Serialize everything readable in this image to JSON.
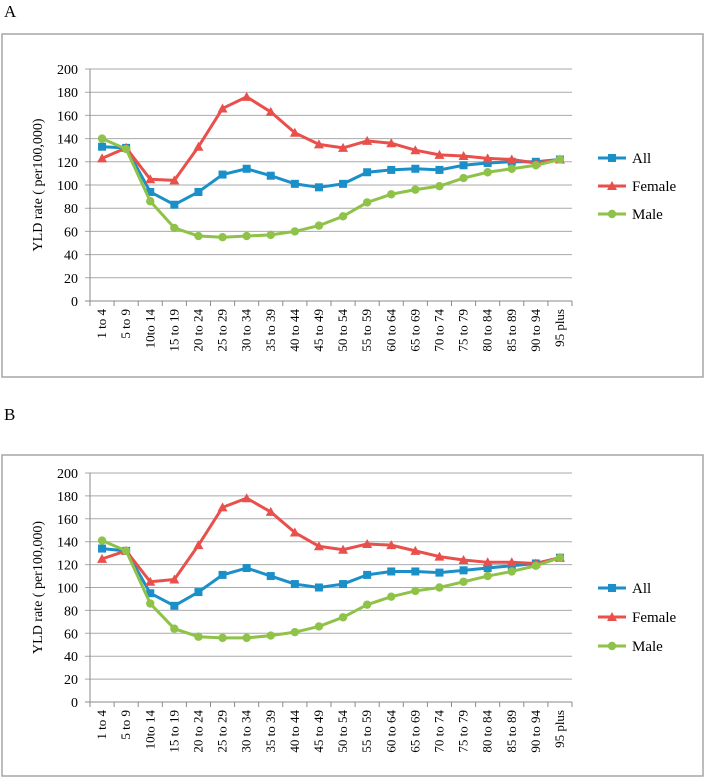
{
  "chart_data": [
    {
      "panel_label": "A",
      "type": "line",
      "title": "",
      "xlabel": "",
      "ylabel": "YLD rate ( per100,000)",
      "ylim": [
        0,
        200
      ],
      "yticks": [
        0,
        20,
        40,
        60,
        80,
        100,
        120,
        140,
        160,
        180,
        200
      ],
      "grid": true,
      "legend": "right",
      "categories": [
        "1 to 4",
        "5 to 9",
        "10to 14",
        "15 to 19",
        "20 to 24",
        "25 to 29",
        "30 to 34",
        "35 to 39",
        "40 to 44",
        "45 to 49",
        "50 to 54",
        "55 to 59",
        "60 to 64",
        "65 to 69",
        "70 to 74",
        "75 to 79",
        "80 to 84",
        "85 to 89",
        "90 to 94",
        "95 plus"
      ],
      "series": [
        {
          "name": "All",
          "color": "#1a8fc8",
          "marker": "square",
          "values": [
            133,
            132,
            94,
            83,
            94,
            109,
            114,
            108,
            101,
            98,
            101,
            111,
            113,
            114,
            113,
            117,
            119,
            120,
            120,
            122
          ]
        },
        {
          "name": "Female",
          "color": "#e9504c",
          "marker": "triangle",
          "values": [
            123,
            132,
            105,
            104,
            133,
            166,
            176,
            163,
            145,
            135,
            132,
            138,
            136,
            130,
            126,
            125,
            123,
            122,
            119,
            122
          ]
        },
        {
          "name": "Male",
          "color": "#8fc248",
          "marker": "circle",
          "values": [
            140,
            131,
            86,
            63,
            56,
            55,
            56,
            57,
            60,
            65,
            73,
            85,
            92,
            96,
            99,
            106,
            111,
            114,
            117,
            122
          ]
        }
      ]
    },
    {
      "panel_label": "B",
      "type": "line",
      "title": "",
      "xlabel": "",
      "ylabel": "YLD rate ( per100,000)",
      "ylim": [
        0,
        200
      ],
      "yticks": [
        0,
        20,
        40,
        60,
        80,
        100,
        120,
        140,
        160,
        180,
        200
      ],
      "grid": true,
      "legend": "right",
      "categories": [
        "1 to 4",
        "5 to 9",
        "10to 14",
        "15 to 19",
        "20 to 24",
        "25 to 29",
        "30 to 34",
        "35 to 39",
        "40 to 44",
        "45 to 49",
        "50 to 54",
        "55 to 59",
        "60 to 64",
        "65 to 69",
        "70 to 74",
        "75 to 79",
        "80 to 84",
        "85 to 89",
        "90 to 94",
        "95 plus"
      ],
      "series": [
        {
          "name": "All",
          "color": "#1a8fc8",
          "marker": "square",
          "values": [
            134,
            132,
            95,
            84,
            96,
            111,
            117,
            110,
            103,
            100,
            103,
            111,
            114,
            114,
            113,
            115,
            117,
            119,
            121,
            126
          ]
        },
        {
          "name": "Female",
          "color": "#e9504c",
          "marker": "triangle",
          "values": [
            125,
            132,
            105,
            107,
            137,
            170,
            178,
            166,
            148,
            136,
            133,
            138,
            137,
            132,
            127,
            124,
            122,
            122,
            121,
            126
          ]
        },
        {
          "name": "Male",
          "color": "#8fc248",
          "marker": "circle",
          "values": [
            141,
            132,
            86,
            64,
            57,
            56,
            56,
            58,
            61,
            66,
            74,
            85,
            92,
            97,
            100,
            105,
            110,
            114,
            119,
            126
          ]
        }
      ]
    }
  ]
}
